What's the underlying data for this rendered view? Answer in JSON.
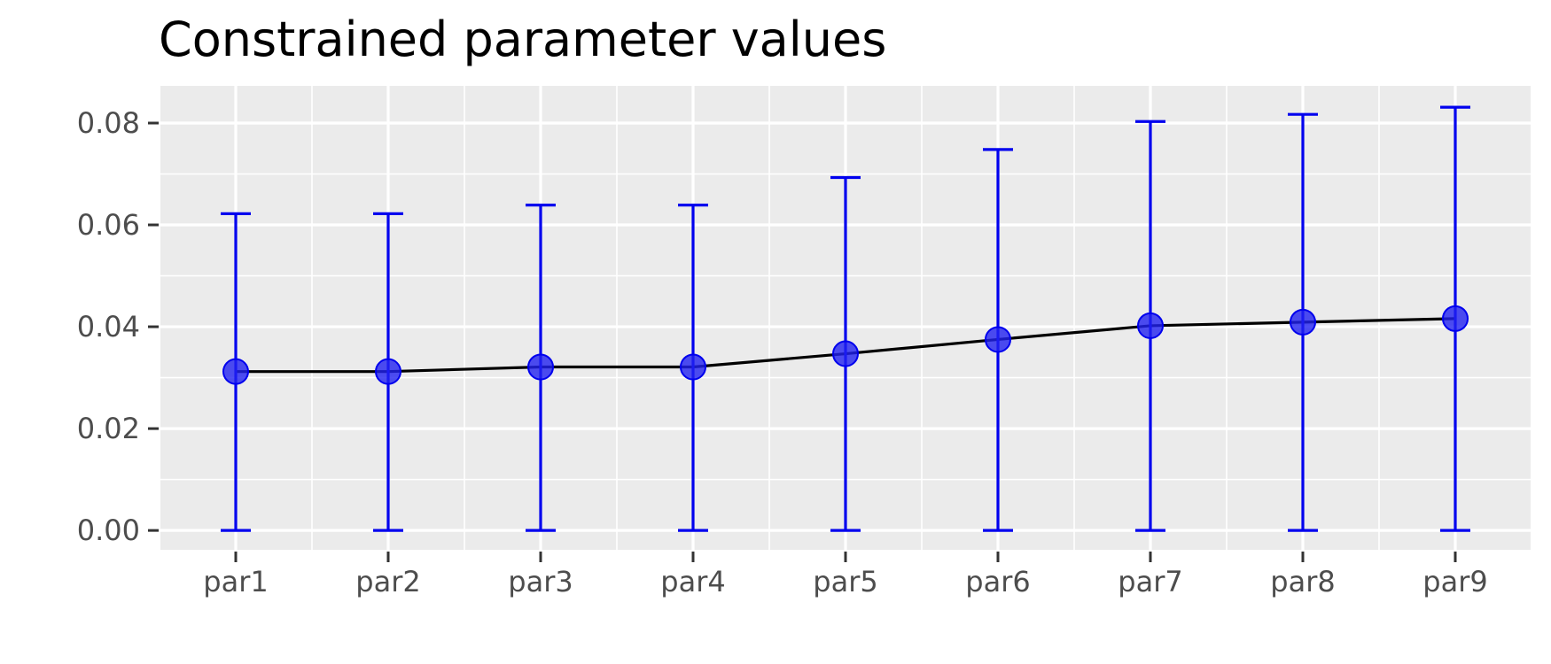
{
  "chart_data": {
    "type": "line",
    "title": "Constrained parameter values",
    "xlabel": "",
    "ylabel": "",
    "categories": [
      "par1",
      "par2",
      "par3",
      "par4",
      "par5",
      "par6",
      "par7",
      "par8",
      "par9"
    ],
    "values": [
      0.0312,
      0.0312,
      0.0321,
      0.0321,
      0.0347,
      0.0375,
      0.0402,
      0.0409,
      0.0416
    ],
    "error_lower": [
      0.0,
      0.0,
      0.0,
      0.0,
      0.0,
      0.0,
      0.0,
      0.0,
      0.0
    ],
    "error_upper": [
      0.0622,
      0.0622,
      0.0639,
      0.0639,
      0.0693,
      0.0748,
      0.0803,
      0.0817,
      0.0831
    ],
    "ylim": [
      -0.0038,
      0.0873
    ],
    "yticks": [
      0.0,
      0.02,
      0.04,
      0.06,
      0.08
    ],
    "ytick_labels": [
      "0.00",
      "0.02",
      "0.04",
      "0.06",
      "0.08"
    ],
    "grid": true,
    "legend": "none",
    "colors": {
      "panel_background": "#EBEBEB",
      "grid_line": "#FFFFFF",
      "connecting_line": "#000000",
      "error_bar": "#0000EE",
      "point_fill": "#2222F0",
      "axis_text": "#4D4D4D",
      "axis_tick": "#333333",
      "title": "#000000"
    }
  }
}
